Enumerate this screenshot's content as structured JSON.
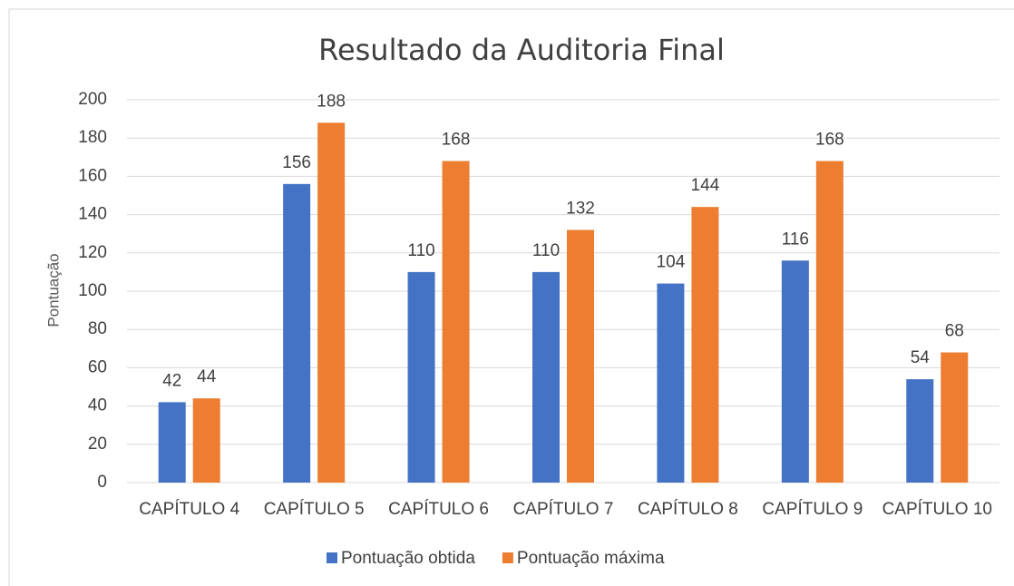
{
  "chart_data": {
    "type": "bar",
    "title": "Resultado da Auditoria Final",
    "ylabel": "Pontuação",
    "categories": [
      "CAPÍTULO 4",
      "CAPÍTULO 5",
      "CAPÍTULO 6",
      "CAPÍTULO 7",
      "CAPÍTULO 8",
      "CAPÍTULO 9",
      "CAPÍTULO 10"
    ],
    "series": [
      {
        "name": "Pontuação obtida",
        "color": "#4472c4",
        "values": [
          42,
          156,
          110,
          110,
          104,
          116,
          54
        ]
      },
      {
        "name": "Pontuação máxima",
        "color": "#ed7d31",
        "values": [
          44,
          188,
          168,
          132,
          144,
          168,
          68
        ]
      }
    ],
    "ylim": [
      0,
      200
    ],
    "yticks": [
      0,
      20,
      40,
      60,
      80,
      100,
      120,
      140,
      160,
      180,
      200
    ],
    "grid": true,
    "legend": "bottom"
  }
}
